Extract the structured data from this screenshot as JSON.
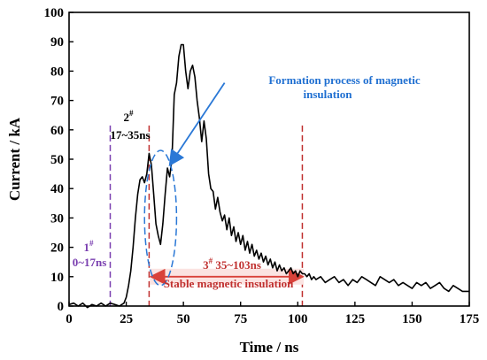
{
  "chart_data": {
    "type": "line",
    "xlabel": "Time / ns",
    "ylabel": "Current / kA",
    "xlim": [
      0,
      175
    ],
    "ylim": [
      0,
      100
    ],
    "x_ticks": [
      "0",
      "25",
      "50",
      "75",
      "100",
      "125",
      "150",
      "175"
    ],
    "y_ticks": [
      "0",
      "10",
      "20",
      "30",
      "40",
      "50",
      "60",
      "70",
      "80",
      "90",
      "100"
    ],
    "grid": false,
    "line_color": "#000000",
    "series": [
      {
        "x": [
          0,
          2,
          4,
          6,
          8,
          10,
          12,
          14,
          16,
          18,
          20,
          22,
          24,
          25,
          26,
          27,
          28,
          29,
          30,
          31,
          32,
          33,
          34,
          35,
          36,
          37,
          38,
          39,
          40,
          41,
          42,
          43,
          44,
          45,
          46,
          47,
          48,
          49,
          50,
          51,
          52,
          53,
          54,
          55,
          56,
          57,
          58,
          59,
          60,
          61,
          62,
          63,
          64,
          65,
          66,
          67,
          68,
          69,
          70,
          71,
          72,
          73,
          74,
          75,
          76,
          77,
          78,
          79,
          80,
          81,
          82,
          83,
          84,
          85,
          86,
          87,
          88,
          89,
          90,
          91,
          92,
          93,
          94,
          95,
          96,
          97,
          98,
          99,
          100,
          101,
          102,
          103,
          104,
          105,
          106,
          107,
          108,
          110,
          112,
          114,
          116,
          118,
          120,
          122,
          124,
          126,
          128,
          130,
          132,
          134,
          136,
          138,
          140,
          142,
          144,
          146,
          148,
          150,
          152,
          154,
          156,
          158,
          160,
          162,
          164,
          166,
          168,
          170,
          172,
          175
        ],
        "values": [
          0.5,
          1,
          0,
          1,
          -0.5,
          0.5,
          0,
          1,
          0,
          1,
          0.5,
          0,
          1,
          3,
          7,
          12,
          20,
          30,
          38,
          43,
          44,
          42,
          45,
          52,
          48,
          38,
          28,
          24,
          21,
          28,
          38,
          47,
          44,
          50,
          72,
          76,
          85,
          89,
          89,
          80,
          74,
          80,
          82,
          78,
          70,
          64,
          56,
          63,
          57,
          45,
          40,
          39,
          33,
          37,
          32,
          29,
          31,
          26,
          30,
          24,
          27,
          22,
          25,
          21,
          24,
          19,
          22,
          18,
          21,
          17,
          19,
          16,
          18,
          15,
          17,
          14,
          16,
          13,
          15,
          12,
          14,
          12,
          13,
          11,
          12,
          13,
          11,
          12,
          10,
          12,
          11,
          11,
          10,
          11,
          9,
          10,
          9,
          10,
          8,
          9,
          10,
          8,
          9,
          7,
          9,
          8,
          10,
          9,
          8,
          7,
          10,
          9,
          8,
          9,
          7,
          8,
          7,
          6,
          8,
          7,
          8,
          6,
          7,
          8,
          6,
          5,
          7,
          6,
          5,
          5
        ]
      }
    ],
    "markers": [
      {
        "x": 18,
        "color": "#7a3fb0"
      },
      {
        "x": 35,
        "color": "#c0302f"
      },
      {
        "x": 102,
        "color": "#c0302f"
      }
    ],
    "span_arrow": {
      "x_start": 35,
      "x_end": 103,
      "y": 10,
      "color": "#d9423a"
    },
    "ellipse": {
      "cx": 40,
      "cy": 30,
      "rx": 7,
      "ry": 23,
      "color": "#2a78d6"
    },
    "pointer": {
      "from_x": 68,
      "from_y": 76,
      "to_x": 44,
      "to_y": 48,
      "color": "#2a78d6"
    },
    "annotations": {
      "phase1": {
        "number": "1",
        "sup": "#",
        "range": "0~17ns"
      },
      "phase2": {
        "number": "2",
        "sup": "#",
        "range": "17~35ns"
      },
      "phase3": {
        "number": "3",
        "sup": "#",
        "range": " 35~103ns"
      },
      "stable": "Stable magnetic insulation",
      "formation_line1": "Formation process of magnetic",
      "formation_line2": "insulation"
    }
  }
}
